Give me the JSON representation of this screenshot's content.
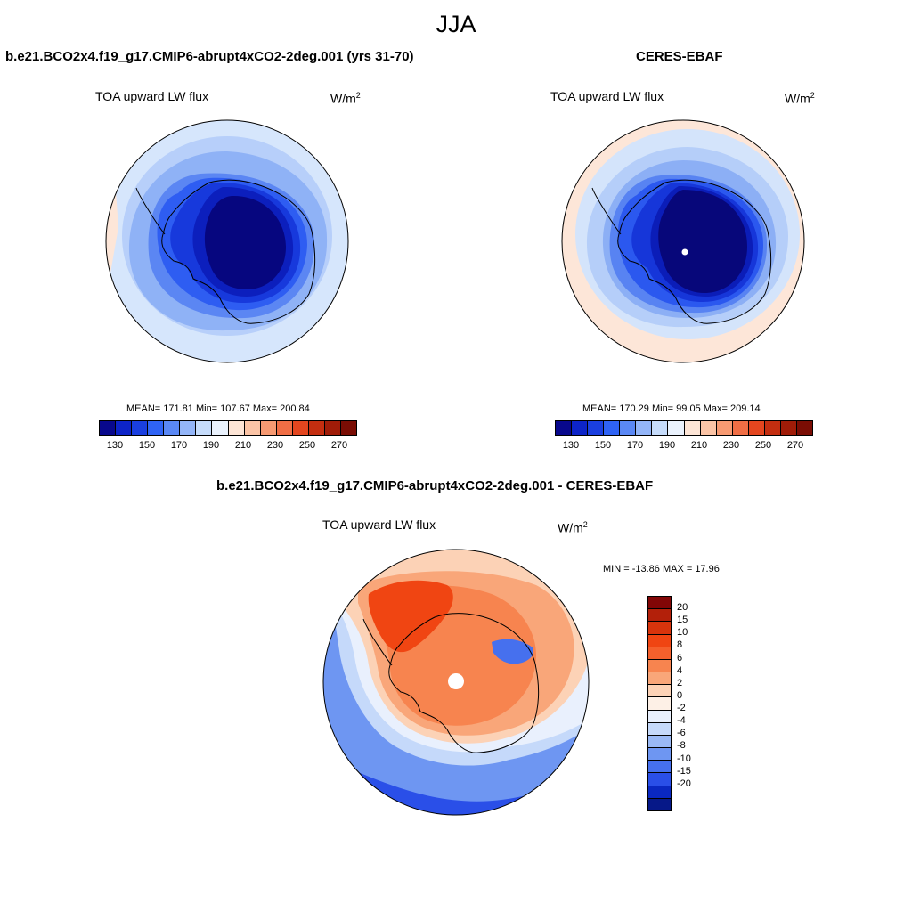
{
  "figure": {
    "season": "JJA"
  },
  "chart_data": [
    {
      "type": "heatmap",
      "projection": "south-polar-stereographic",
      "title": "b.e21.BCO2x4.f19_g17.CMIP6-abrupt4xCO2-2deg.001 (yrs 31-70)",
      "variable": "TOA upward LW flux",
      "units": "W/m",
      "units_exp": "2",
      "stats_text": "MEAN= 171.81  Min= 107.67  Max= 200.84",
      "stats": {
        "mean": 171.81,
        "min": 107.67,
        "max": 200.84
      },
      "colorbar": {
        "ticks": [
          "130",
          "150",
          "170",
          "190",
          "210",
          "230",
          "250",
          "270"
        ],
        "colors": [
          "#08088c",
          "#0d24c8",
          "#1a3fe0",
          "#2f63f5",
          "#5a88f5",
          "#93b5f8",
          "#c6dcfb",
          "#eaf2fd",
          "#fde5d6",
          "#fbc4a6",
          "#f79a72",
          "#f06e45",
          "#e4461f",
          "#c42e10",
          "#a01c08",
          "#7a0d04"
        ]
      },
      "bands_center_to_edge": [
        {
          "value": 125,
          "color": "#06067f"
        },
        {
          "value": 135,
          "color": "#0c1fbd"
        },
        {
          "value": 145,
          "color": "#1739dc"
        },
        {
          "value": 155,
          "color": "#2e5df2"
        },
        {
          "value": 165,
          "color": "#5b86f3"
        },
        {
          "value": 175,
          "color": "#8fb2f6"
        },
        {
          "value": 185,
          "color": "#b7cffa"
        },
        {
          "value": 195,
          "color": "#d6e6fc"
        }
      ]
    },
    {
      "type": "heatmap",
      "projection": "south-polar-stereographic",
      "title": "CERES-EBAF",
      "variable": "TOA upward LW flux",
      "units": "W/m",
      "units_exp": "2",
      "stats_text": "MEAN= 170.29  Min=  99.05  Max= 209.14",
      "stats": {
        "mean": 170.29,
        "min": 99.05,
        "max": 209.14
      },
      "colorbar": {
        "ticks": [
          "130",
          "150",
          "170",
          "190",
          "210",
          "230",
          "250",
          "270"
        ],
        "colors": [
          "#08088c",
          "#0d24c8",
          "#1a3fe0",
          "#2f63f5",
          "#5a88f5",
          "#93b5f8",
          "#c6dcfb",
          "#eaf2fd",
          "#fde5d6",
          "#fbc4a6",
          "#f79a72",
          "#f06e45",
          "#e4461f",
          "#c42e10",
          "#a01c08",
          "#7a0d04"
        ]
      },
      "bands_center_to_edge": [
        {
          "value": 125,
          "color": "#07077a"
        },
        {
          "value": 135,
          "color": "#0b1db8"
        },
        {
          "value": 145,
          "color": "#1636d9"
        },
        {
          "value": 155,
          "color": "#2b58ef"
        },
        {
          "value": 165,
          "color": "#5883f2"
        },
        {
          "value": 175,
          "color": "#8caff5"
        },
        {
          "value": 185,
          "color": "#b5cef9"
        },
        {
          "value": 195,
          "color": "#d4e4fb"
        },
        {
          "value": 205,
          "color": "#fde6d8"
        }
      ]
    },
    {
      "type": "heatmap",
      "projection": "south-polar-stereographic",
      "title": "b.e21.BCO2x4.f19_g17.CMIP6-abrupt4xCO2-2deg.001 - CERES-EBAF",
      "variable": "TOA upward LW flux",
      "units": "W/m",
      "units_exp": "2",
      "stats_text": "MIN = -13.86 MAX =  17.96",
      "stats": {
        "min": -13.86,
        "max": 17.96
      },
      "colorbar": {
        "ticks": [
          "20",
          "15",
          "10",
          "8",
          "6",
          "4",
          "2",
          "0",
          "-2",
          "-4",
          "-6",
          "-8",
          "-10",
          "-15",
          "-20"
        ],
        "colors": [
          "#820606",
          "#b3200a",
          "#d8340c",
          "#f04512",
          "#f5602c",
          "#f7844f",
          "#f9a679",
          "#fcd2b6",
          "#fdf0e6",
          "#e9f0fd",
          "#c5d9fa",
          "#9ab9f5",
          "#6e96f2",
          "#4670ee",
          "#2a4fe8",
          "#0a28c2",
          "#061888"
        ]
      }
    }
  ]
}
